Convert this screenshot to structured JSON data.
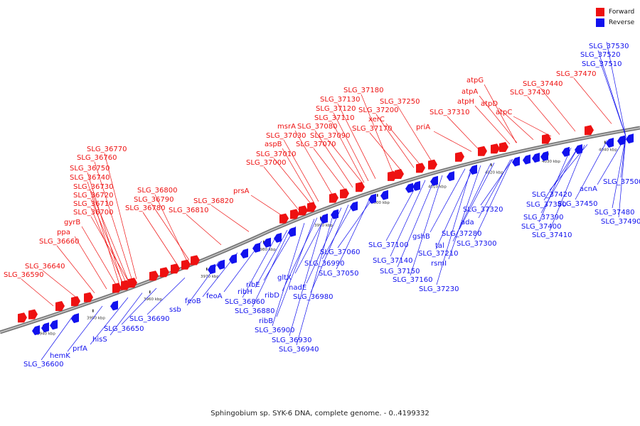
{
  "caption": "Sphingobium sp. SYK-6 DNA, complete genome. - 0..4199332",
  "legend": [
    {
      "label": "Forward",
      "color": "#ee1111"
    },
    {
      "label": "Reverse",
      "color": "#1111ee"
    }
  ],
  "colors": {
    "forward": "#ee1111",
    "reverse": "#1111ee",
    "backbone": "#888888"
  },
  "ticks": [
    "3940 kbp",
    "3950 kbp",
    "3960 kbp",
    "3970 kbp",
    "3980 kbp",
    "3990 kbp",
    "4000 kbp",
    "4010 kbp",
    "4020 kbp",
    "4030 kbp",
    "4040 kbp"
  ],
  "forward_labels": [
    "SLG_36590",
    "SLG_36640",
    "SLG_36660",
    "ppa",
    "gyrB",
    "SLG_36700",
    "SLG_36710",
    "SLG_36720",
    "SLG_36730",
    "SLG_36740",
    "SLG_36750",
    "SLG_36760",
    "SLG_36770",
    "SLG_36780",
    "SLG_36790",
    "SLG_36800",
    "SLG_36810",
    "SLG_36820",
    "prsA",
    "SLG_37000",
    "SLG_37010",
    "aspB",
    "SLG_37030",
    "msrA",
    "SLG_37070",
    "SLG_37090",
    "SLG_37080",
    "SLG_37110",
    "SLG_37120",
    "SLG_37130",
    "SLG_37170",
    "xerC",
    "SLG_37200",
    "SLG_37180",
    "SLG_37250",
    "priA",
    "SLG_37310",
    "atpH",
    "atpA",
    "atpG",
    "atpD",
    "atpC",
    "SLG_37430",
    "SLG_37440",
    "SLG_37470"
  ],
  "reverse_labels": [
    "SLG_36600",
    "hemK",
    "prfA",
    "hisS",
    "SLG_36650",
    "SLG_36690",
    "ssb",
    "feoB",
    "feoA",
    "ribH",
    "SLG_36860",
    "SLG_36880",
    "ribE",
    "ribD",
    "ribB",
    "SLG_36900",
    "SLG_36930",
    "SLG_36940",
    "gltX",
    "nadE",
    "SLG_36980",
    "SLG_36990",
    "SLG_37050",
    "SLG_37060",
    "SLG_37100",
    "SLG_37140",
    "SLG_37150",
    "SLG_37160",
    "gshB",
    "SLG_37210",
    "rsmI",
    "SLG_37230",
    "tal",
    "ada",
    "SLG_37280",
    "SLG_37300",
    "SLG_37320",
    "SLG_37380",
    "SLG_37390",
    "SLG_37400",
    "SLG_37410",
    "SLG_37420",
    "SLG_37450",
    "acnA",
    "SLG_37480",
    "SLG_37490",
    "SLG_37500",
    "SLG_37510",
    "SLG_37520",
    "SLG_37530"
  ]
}
